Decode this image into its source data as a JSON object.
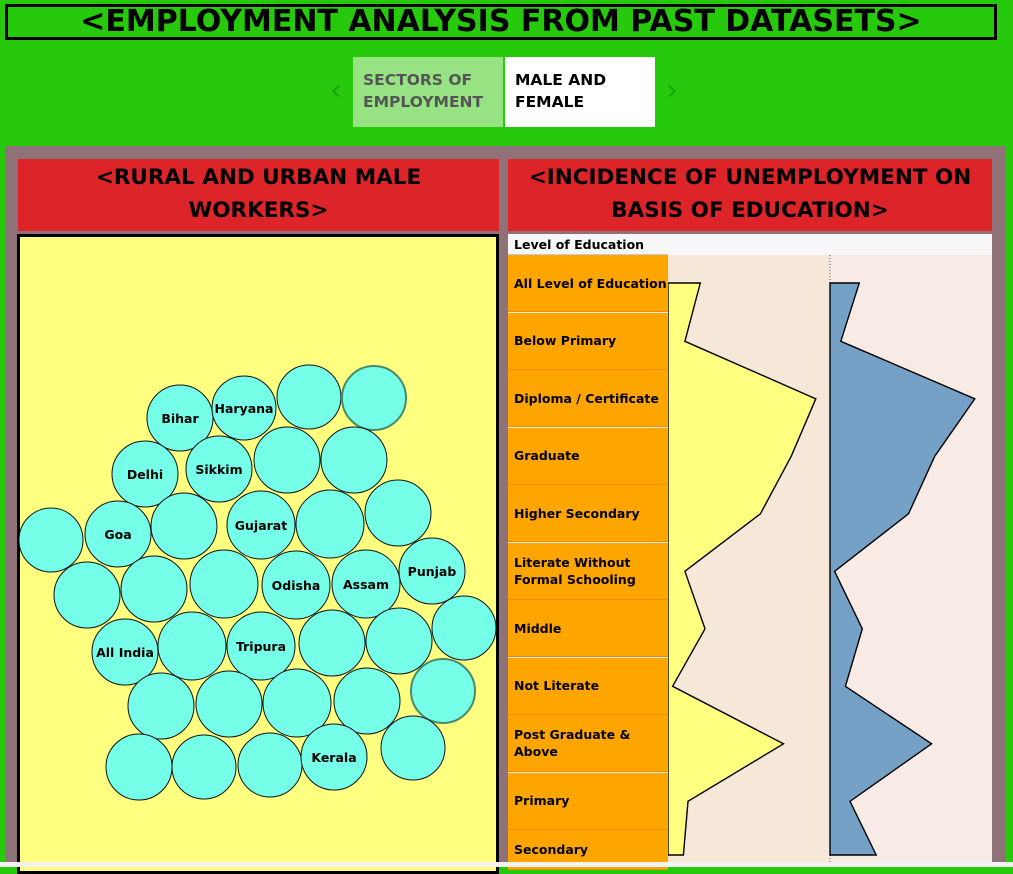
{
  "title": "<EMPLOYMENT ANALYSIS FROM PAST DATASETS>",
  "nav": {
    "prev_icon": "chevron-left-icon",
    "next_icon": "chevron-right-icon",
    "tabs": [
      {
        "label_line1": "SECTORS OF",
        "label_line2": "EMPLOYMENT",
        "active": false
      },
      {
        "label_line1": "MALE AND",
        "label_line2": "FEMALE",
        "active": true
      }
    ]
  },
  "left_panel": {
    "title_line1": "<RURAL AND URBAN MALE",
    "title_line2": "WORKERS>",
    "bubble_labels": [
      "Bihar",
      "Haryana",
      "Delhi",
      "Sikkim",
      "Goa",
      "Gujarat",
      "Punjab",
      "Odisha",
      "Assam",
      "All India",
      "Tripura",
      "Kerala"
    ],
    "colors": {
      "bubble": "#76ffe8",
      "background": "#ffff80"
    }
  },
  "right_panel": {
    "title_line1": "<INCIDENCE OF UNEMPLOYMENT ON",
    "title_line2": "BASIS OF EDUCATION>",
    "column_header": "Level of Education",
    "rows": [
      "All Level of Education",
      "Below Primary",
      "Diploma / Certificate",
      "Graduate",
      "Higher Secondary",
      "Literate Without Formal Schooling",
      "Middle",
      "Not Literate",
      "Post Graduate & Above",
      "Primary",
      "Secondary"
    ],
    "chart_data": {
      "type": "area",
      "categories": [
        "All Level of Education",
        "Below Primary",
        "Diploma / Certificate",
        "Graduate",
        "Higher Secondary",
        "Literate Without Formal Schooling",
        "Middle",
        "Not Literate",
        "Post Graduate & Above",
        "Primary",
        "Secondary"
      ],
      "series": [
        {
          "values": [
            0.21,
            0.11,
            0.96,
            0.8,
            0.6,
            0.11,
            0.24,
            0.03,
            0.75,
            0.13,
            0.1
          ],
          "color": "#ffff80"
        },
        {
          "values": [
            0.19,
            0.07,
            0.94,
            0.68,
            0.51,
            0.03,
            0.21,
            0.1,
            0.66,
            0.13,
            0.3
          ],
          "color": "#75a1c7"
        }
      ],
      "panel_backgrounds": [
        "#f5e8d8",
        "#f8ebe6"
      ]
    }
  }
}
